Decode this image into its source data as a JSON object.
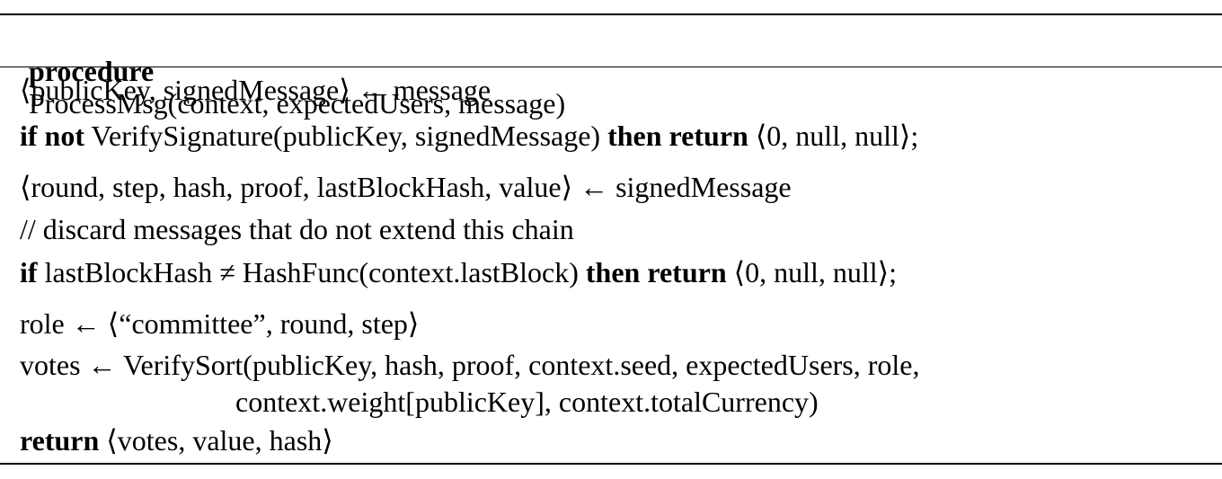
{
  "header": {
    "keyword": "procedure",
    "signature": "ProcessMsg(context, expectedUsers, message)"
  },
  "body_lines": [
    {
      "segments": [
        {
          "t": "⟨publicKey, signedMessage⟩ ← message",
          "b": false
        }
      ]
    },
    {
      "segments": [
        {
          "t": "if not",
          "b": true
        },
        {
          "t": " VerifySignature(publicKey, signedMessage) ",
          "b": false
        },
        {
          "t": "then return",
          "b": true
        },
        {
          "t": " ⟨0, null, null⟩;",
          "b": false
        }
      ]
    },
    {
      "segments": [
        {
          "t": "⟨round, step, hash, proof, lastBlockHash, value⟩ ← signedMessage",
          "b": false
        }
      ]
    },
    {
      "segments": [
        {
          "t": "// discard messages that do not extend this chain",
          "b": false
        }
      ]
    },
    {
      "segments": [
        {
          "t": "if",
          "b": true
        },
        {
          "t": " lastBlockHash ≠ HashFunc(context.lastBlock) ",
          "b": false
        },
        {
          "t": "then return",
          "b": true
        },
        {
          "t": " ⟨0, null, null⟩;",
          "b": false
        }
      ]
    },
    {
      "segments": [
        {
          "t": "role ← ⟨“committee”, round, step⟩",
          "b": false
        }
      ]
    },
    {
      "segments": [
        {
          "t": "votes ← VerifySort(publicKey, hash, proof, context.seed, expectedUsers, role,",
          "b": false
        }
      ]
    },
    {
      "segments": [
        {
          "t": "context.weight[publicKey], context.totalCurrency)",
          "b": false
        }
      ]
    },
    {
      "segments": [
        {
          "t": "return",
          "b": true
        },
        {
          "t": " ⟨votes, value, hash⟩",
          "b": false
        }
      ]
    }
  ]
}
